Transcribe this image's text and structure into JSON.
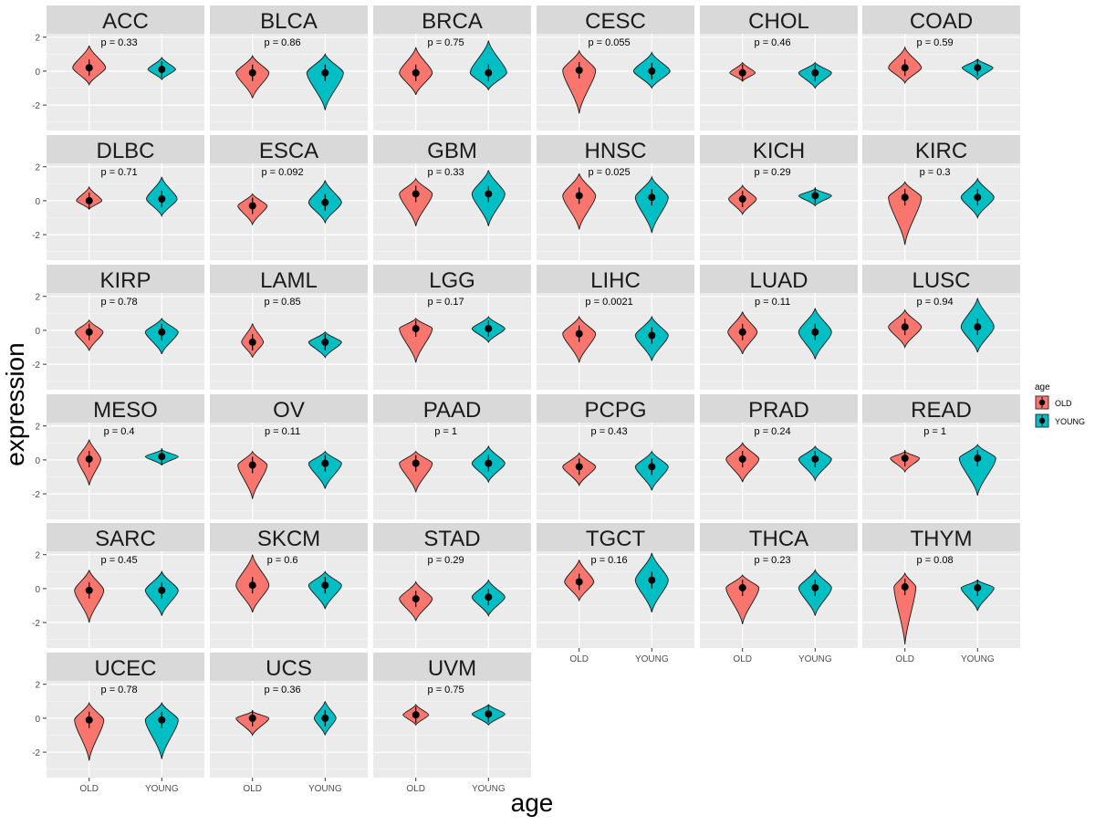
{
  "chart_data": {
    "type": "violin",
    "facet": "cancer type",
    "xlabel": "age",
    "ylabel": "expression",
    "categories": [
      "OLD",
      "YOUNG"
    ],
    "ylim": [
      -3.5,
      2.2
    ],
    "y_ticks": [
      -2,
      0,
      2
    ],
    "legend": {
      "title": "age",
      "position": "right",
      "entries": [
        {
          "label": "OLD",
          "color": "#F8766D"
        },
        {
          "label": "YOUNG",
          "color": "#00BFC4"
        }
      ]
    },
    "colors": {
      "OLD": "#F8766D",
      "YOUNG": "#00BFC4",
      "strip": "#D9D9D9",
      "panel": "#EBEBEB",
      "grid_major": "#FFFFFF"
    },
    "panels": [
      {
        "name": "ACC",
        "p": "p = 0.33",
        "old": {
          "median": 0.2,
          "min": -0.8,
          "max": 1.5,
          "width": 0.45
        },
        "young": {
          "median": 0.1,
          "min": -0.5,
          "max": 0.8,
          "width": 0.38
        }
      },
      {
        "name": "BLCA",
        "p": "p = 0.86",
        "old": {
          "median": -0.1,
          "min": -1.6,
          "max": 0.9,
          "width": 0.45
        },
        "young": {
          "median": -0.1,
          "min": -2.3,
          "max": 1.0,
          "width": 0.5
        }
      },
      {
        "name": "BRCA",
        "p": "p = 0.75",
        "old": {
          "median": -0.1,
          "min": -1.4,
          "max": 1.4,
          "width": 0.45
        },
        "young": {
          "median": -0.1,
          "min": -1.1,
          "max": 1.8,
          "width": 0.5
        }
      },
      {
        "name": "CESC",
        "p": "p = 0.055",
        "old": {
          "median": 0.05,
          "min": -2.5,
          "max": 1.2,
          "width": 0.45
        },
        "young": {
          "median": 0.0,
          "min": -1.0,
          "max": 1.1,
          "width": 0.5
        }
      },
      {
        "name": "CHOL",
        "p": "p = 0.46",
        "old": {
          "median": -0.1,
          "min": -0.6,
          "max": 0.5,
          "width": 0.35
        },
        "young": {
          "median": -0.1,
          "min": -1.0,
          "max": 0.5,
          "width": 0.45
        }
      },
      {
        "name": "COAD",
        "p": "p = 0.59",
        "old": {
          "median": 0.2,
          "min": -0.7,
          "max": 1.4,
          "width": 0.45
        },
        "young": {
          "median": 0.2,
          "min": -0.5,
          "max": 0.7,
          "width": 0.42
        }
      },
      {
        "name": "DLBC",
        "p": "p = 0.71",
        "old": {
          "median": 0.0,
          "min": -0.5,
          "max": 0.8,
          "width": 0.35
        },
        "young": {
          "median": 0.1,
          "min": -0.9,
          "max": 1.4,
          "width": 0.42
        }
      },
      {
        "name": "ESCA",
        "p": "p = 0.092",
        "old": {
          "median": -0.3,
          "min": -1.4,
          "max": 0.4,
          "width": 0.4
        },
        "young": {
          "median": -0.1,
          "min": -1.3,
          "max": 1.2,
          "width": 0.45
        }
      },
      {
        "name": "GBM",
        "p": "p = 0.33",
        "old": {
          "median": 0.4,
          "min": -1.5,
          "max": 1.3,
          "width": 0.45
        },
        "young": {
          "median": 0.4,
          "min": -1.5,
          "max": 1.8,
          "width": 0.45
        }
      },
      {
        "name": "HNSC",
        "p": "p = 0.025",
        "old": {
          "median": 0.3,
          "min": -1.7,
          "max": 1.6,
          "width": 0.45
        },
        "young": {
          "median": 0.2,
          "min": -1.9,
          "max": 1.4,
          "width": 0.45
        }
      },
      {
        "name": "KICH",
        "p": "p = 0.29",
        "old": {
          "median": 0.1,
          "min": -0.8,
          "max": 0.9,
          "width": 0.38
        },
        "young": {
          "median": 0.3,
          "min": -0.3,
          "max": 0.7,
          "width": 0.45
        }
      },
      {
        "name": "KIRC",
        "p": "p = 0.3",
        "old": {
          "median": 0.2,
          "min": -2.6,
          "max": 1.1,
          "width": 0.45
        },
        "young": {
          "median": 0.2,
          "min": -1.0,
          "max": 1.3,
          "width": 0.45
        }
      },
      {
        "name": "KIRP",
        "p": "p = 0.78",
        "old": {
          "median": -0.1,
          "min": -1.2,
          "max": 0.6,
          "width": 0.38
        },
        "young": {
          "median": -0.1,
          "min": -1.4,
          "max": 0.7,
          "width": 0.45
        }
      },
      {
        "name": "LAML",
        "p": "p = 0.85",
        "old": {
          "median": -0.7,
          "min": -1.6,
          "max": 0.4,
          "width": 0.3
        },
        "young": {
          "median": -0.7,
          "min": -1.6,
          "max": -0.1,
          "width": 0.45
        }
      },
      {
        "name": "LGG",
        "p": "p = 0.17",
        "old": {
          "median": 0.1,
          "min": -1.9,
          "max": 0.7,
          "width": 0.45
        },
        "young": {
          "median": 0.1,
          "min": -0.7,
          "max": 0.8,
          "width": 0.45
        }
      },
      {
        "name": "LIHC",
        "p": "p = 0.0021",
        "old": {
          "median": -0.2,
          "min": -1.9,
          "max": 0.8,
          "width": 0.45
        },
        "young": {
          "median": -0.3,
          "min": -1.8,
          "max": 0.8,
          "width": 0.45
        }
      },
      {
        "name": "LUAD",
        "p": "p = 0.11",
        "old": {
          "median": -0.1,
          "min": -1.4,
          "max": 1.1,
          "width": 0.4
        },
        "young": {
          "median": -0.1,
          "min": -1.7,
          "max": 1.3,
          "width": 0.45
        }
      },
      {
        "name": "LUSC",
        "p": "p = 0.94",
        "old": {
          "median": 0.2,
          "min": -1.0,
          "max": 1.2,
          "width": 0.45
        },
        "young": {
          "median": 0.2,
          "min": -1.3,
          "max": 1.9,
          "width": 0.45
        }
      },
      {
        "name": "MESO",
        "p": "p = 0.4",
        "old": {
          "median": 0.05,
          "min": -1.5,
          "max": 1.2,
          "width": 0.32
        },
        "young": {
          "median": 0.2,
          "min": -0.3,
          "max": 0.6,
          "width": 0.45
        }
      },
      {
        "name": "OV",
        "p": "p = 0.11",
        "old": {
          "median": -0.3,
          "min": -2.3,
          "max": 0.5,
          "width": 0.4
        },
        "young": {
          "median": -0.2,
          "min": -1.7,
          "max": 0.5,
          "width": 0.45
        }
      },
      {
        "name": "PAAD",
        "p": "p = 1",
        "old": {
          "median": -0.2,
          "min": -1.9,
          "max": 0.5,
          "width": 0.45
        },
        "young": {
          "median": -0.2,
          "min": -1.3,
          "max": 0.8,
          "width": 0.45
        }
      },
      {
        "name": "PCPG",
        "p": "p = 0.43",
        "old": {
          "median": -0.4,
          "min": -1.5,
          "max": 0.4,
          "width": 0.45
        },
        "young": {
          "median": -0.4,
          "min": -1.8,
          "max": 0.5,
          "width": 0.45
        }
      },
      {
        "name": "PRAD",
        "p": "p = 0.24",
        "old": {
          "median": 0.05,
          "min": -1.3,
          "max": 1.0,
          "width": 0.45
        },
        "young": {
          "median": 0.05,
          "min": -1.2,
          "max": 0.8,
          "width": 0.45
        }
      },
      {
        "name": "READ",
        "p": "p = 1",
        "old": {
          "median": 0.1,
          "min": -0.7,
          "max": 0.5,
          "width": 0.4
        },
        "young": {
          "median": 0.1,
          "min": -2.1,
          "max": 0.9,
          "width": 0.5
        }
      },
      {
        "name": "SARC",
        "p": "p = 0.45",
        "old": {
          "median": -0.1,
          "min": -2.0,
          "max": 1.1,
          "width": 0.4
        },
        "young": {
          "median": -0.1,
          "min": -1.6,
          "max": 1.0,
          "width": 0.45
        }
      },
      {
        "name": "SKCM",
        "p": "p = 0.6",
        "old": {
          "median": 0.2,
          "min": -1.4,
          "max": 2.0,
          "width": 0.45
        },
        "young": {
          "median": 0.2,
          "min": -1.2,
          "max": 1.0,
          "width": 0.45
        }
      },
      {
        "name": "STAD",
        "p": "p = 0.29",
        "old": {
          "median": -0.6,
          "min": -1.9,
          "max": 0.4,
          "width": 0.45
        },
        "young": {
          "median": -0.5,
          "min": -1.6,
          "max": 0.5,
          "width": 0.45
        }
      },
      {
        "name": "TGCT",
        "p": "p = 0.16",
        "old": {
          "median": 0.4,
          "min": -0.7,
          "max": 1.7,
          "width": 0.4
        },
        "young": {
          "median": 0.5,
          "min": -1.4,
          "max": 2.1,
          "width": 0.45
        }
      },
      {
        "name": "THCA",
        "p": "p = 0.23",
        "old": {
          "median": 0.05,
          "min": -2.1,
          "max": 0.8,
          "width": 0.45
        },
        "young": {
          "median": 0.05,
          "min": -1.6,
          "max": 1.1,
          "width": 0.45
        }
      },
      {
        "name": "THYM",
        "p": "p = 0.08",
        "old": {
          "median": 0.1,
          "min": -3.3,
          "max": 0.9,
          "width": 0.3
        },
        "young": {
          "median": 0.05,
          "min": -1.3,
          "max": 0.5,
          "width": 0.45
        }
      },
      {
        "name": "UCEC",
        "p": "p = 0.78",
        "old": {
          "median": -0.1,
          "min": -2.5,
          "max": 0.9,
          "width": 0.4
        },
        "young": {
          "median": -0.1,
          "min": -2.4,
          "max": 0.9,
          "width": 0.45
        }
      },
      {
        "name": "UCS",
        "p": "p = 0.36",
        "old": {
          "median": 0.0,
          "min": -1.0,
          "max": 0.4,
          "width": 0.45
        },
        "young": {
          "median": 0.0,
          "min": -1.0,
          "max": 1.0,
          "width": 0.3
        }
      },
      {
        "name": "UVM",
        "p": "p = 0.75",
        "old": {
          "median": 0.2,
          "min": -0.4,
          "max": 0.8,
          "width": 0.35
        },
        "young": {
          "median": 0.25,
          "min": -0.4,
          "max": 0.8,
          "width": 0.45
        }
      }
    ]
  }
}
